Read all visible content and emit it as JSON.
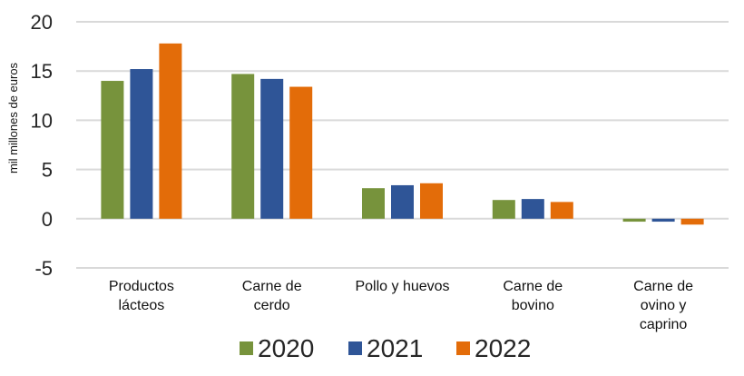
{
  "chart_data": {
    "type": "bar",
    "title": "",
    "xlabel": "",
    "ylabel": "mil millones de euros",
    "ylim": [
      -5,
      20
    ],
    "yticks": [
      -5,
      0,
      5,
      10,
      15,
      20
    ],
    "grid": true,
    "legend_position": "bottom",
    "categories": [
      [
        "Productos",
        "lácteos"
      ],
      [
        "Carne de",
        "cerdo"
      ],
      [
        "Pollo y huevos"
      ],
      [
        "Carne de",
        "bovino"
      ],
      [
        "Carne de",
        "ovino y",
        "caprino"
      ]
    ],
    "series": [
      {
        "name": "2020",
        "color": "#77933C",
        "values": [
          14.0,
          14.7,
          3.1,
          1.9,
          -0.3
        ]
      },
      {
        "name": "2021",
        "color": "#2F5597",
        "values": [
          15.2,
          14.2,
          3.4,
          2.0,
          -0.3
        ]
      },
      {
        "name": "2022",
        "color": "#E36C09",
        "values": [
          17.8,
          13.4,
          3.6,
          1.7,
          -0.6
        ]
      }
    ]
  }
}
